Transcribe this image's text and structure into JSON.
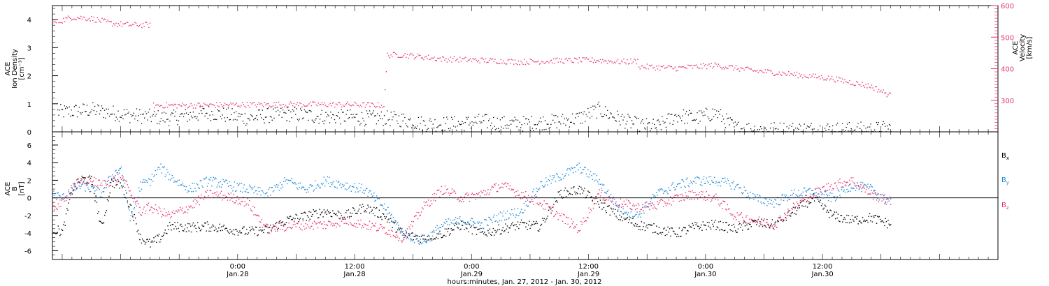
{
  "chart_data": [
    {
      "type": "scatter",
      "panel": "top",
      "ylabel_left": [
        "ACE",
        "Ion Density",
        "[cm⁻³]"
      ],
      "ylabel_right": [
        "ACE",
        "Velocity",
        "[km/s]"
      ],
      "ylim_left": [
        0,
        4.5
      ],
      "ylim_right": [
        200,
        600
      ],
      "yticks_left": [
        "0",
        "1",
        "2",
        "3",
        "4"
      ],
      "yticks_right": [
        "300",
        "400",
        "500",
        "600"
      ],
      "series": [
        {
          "axis": "left",
          "color": "#000000",
          "x_hours": [
            0,
            2,
            4,
            6,
            8,
            10,
            12,
            14,
            16,
            18,
            20,
            22,
            24,
            26,
            28,
            30,
            32,
            34,
            36,
            38,
            40,
            42,
            44,
            46,
            48,
            50,
            52,
            54,
            56,
            58,
            60,
            62,
            64,
            66,
            68,
            70,
            72,
            74,
            76,
            78,
            80,
            82,
            84,
            86
          ],
          "values": [
            0.7,
            0.75,
            0.8,
            0.7,
            0.6,
            0.55,
            0.5,
            0.6,
            0.7,
            0.6,
            0.5,
            0.6,
            0.65,
            0.6,
            0.55,
            0.55,
            0.5,
            0.5,
            0.45,
            0.3,
            0.3,
            0.3,
            0.4,
            0.3,
            0.3,
            0.35,
            0.4,
            0.5,
            0.8,
            0.5,
            0.25,
            0.2,
            0.6,
            0.5,
            0.7,
            0.15,
            0.1,
            0.1,
            0.1,
            0.1,
            0.1,
            0.1,
            0.1,
            0.15
          ]
        },
        {
          "axis": "right",
          "color": "#e8336a",
          "x_hours": [
            0,
            2,
            4,
            6,
            8,
            10,
            10.2,
            14,
            18,
            22,
            26,
            30,
            34,
            34.3,
            36,
            40,
            44,
            48,
            52,
            56,
            58,
            60,
            60.2,
            64,
            68,
            72,
            76,
            80,
            84,
            86
          ],
          "values": [
            545,
            565,
            560,
            545,
            540,
            540,
            285,
            285,
            287,
            288,
            288,
            288,
            285,
            445,
            445,
            432,
            428,
            423,
            427,
            428,
            423,
            425,
            408,
            403,
            412,
            395,
            383,
            370,
            345,
            315
          ]
        }
      ]
    },
    {
      "type": "scatter",
      "panel": "bottom",
      "ylabel_left": [
        "ACE",
        "B",
        "[nT]"
      ],
      "ylim": [
        -7,
        7.5
      ],
      "yticks": [
        "-6",
        "-4",
        "-2",
        "0",
        "2",
        "4",
        "6"
      ],
      "x_start": "Jan. 27, 2012 05:00",
      "x_range_hours": [
        0,
        97
      ],
      "xticks": [
        {
          "hours": 19,
          "top": "0:00",
          "bottom": "Jan.28"
        },
        {
          "hours": 31,
          "top": "12:00",
          "bottom": "Jan.28"
        },
        {
          "hours": 43,
          "top": "0:00",
          "bottom": "Jan.29"
        },
        {
          "hours": 55,
          "top": "12:00",
          "bottom": "Jan.29"
        },
        {
          "hours": 67,
          "top": "0:00",
          "bottom": "Jan.30"
        },
        {
          "hours": 79,
          "top": "12:00",
          "bottom": "Jan.30"
        }
      ],
      "xlabel": "hours:minutes, Jan. 27, 2012 - Jan. 30, 2012",
      "series": [
        {
          "name": "Bx",
          "label_main": "B",
          "label_sub": "x",
          "color": "#000000",
          "x_hours": [
            0,
            1,
            2,
            3,
            4,
            5,
            6,
            7,
            8,
            9,
            10,
            11,
            12,
            14,
            16,
            18,
            20,
            22,
            24,
            26,
            28,
            30,
            32,
            34,
            36,
            38,
            40,
            42,
            44,
            46,
            48,
            50,
            52,
            54,
            56,
            58,
            60,
            62,
            64,
            66,
            68,
            70,
            72,
            74,
            76,
            78,
            80,
            82,
            84,
            86
          ],
          "values": [
            -3.5,
            -3.8,
            1,
            2.2,
            2.0,
            -3.5,
            1.8,
            1.5,
            -1,
            -4.5,
            -5.2,
            -4.5,
            -3.2,
            -3.3,
            -3.2,
            -3.5,
            -3.8,
            -3.6,
            -2.5,
            -2.0,
            -1.5,
            -2.0,
            -1.0,
            -2.0,
            -4.2,
            -4.5,
            -4.0,
            -3.0,
            -4.0,
            -3.5,
            -3.0,
            -3.2,
            0.5,
            1.0,
            -0.5,
            -2.0,
            -3.0,
            -3.5,
            -4.0,
            -3.2,
            -3.0,
            -3.5,
            -2.8,
            -3.0,
            -1.5,
            0,
            -2.0,
            -2.5,
            -2.2,
            -3.0
          ]
        },
        {
          "name": "By",
          "label_main": "B",
          "label_sub": "y",
          "color": "#1e88d8",
          "x_hours": [
            0,
            1,
            2,
            3,
            4,
            5,
            6,
            7,
            8,
            9,
            10,
            11,
            12,
            14,
            16,
            18,
            20,
            22,
            24,
            26,
            28,
            30,
            32,
            34,
            36,
            38,
            40,
            42,
            44,
            46,
            48,
            50,
            52,
            54,
            56,
            58,
            60,
            62,
            64,
            66,
            68,
            70,
            72,
            74,
            76,
            78,
            80,
            82,
            84,
            86
          ],
          "values": [
            0.5,
            0,
            1.0,
            1.5,
            1.0,
            0.5,
            2.5,
            3.5,
            -2.5,
            1.5,
            2.0,
            3.5,
            2.5,
            1.0,
            2.0,
            1.5,
            1.0,
            0.5,
            2.0,
            1.0,
            2.0,
            1.5,
            1.0,
            -1.0,
            -4.0,
            -5.0,
            -3.0,
            -2.5,
            -3.0,
            -2.0,
            -1.5,
            1.5,
            2.5,
            3.5,
            2.0,
            -1.0,
            -2.0,
            0.5,
            1.5,
            2.0,
            2.0,
            1.5,
            0,
            -0.5,
            0.5,
            0.8,
            0,
            1.5,
            1.0,
            -0.5
          ]
        },
        {
          "name": "Bz",
          "label_main": "B",
          "label_sub": "z",
          "color": "#e8336a",
          "x_hours": [
            0,
            1,
            2,
            3,
            4,
            5,
            6,
            7,
            8,
            9,
            10,
            11,
            12,
            14,
            16,
            18,
            20,
            22,
            24,
            26,
            28,
            30,
            32,
            34,
            36,
            38,
            40,
            42,
            44,
            46,
            48,
            50,
            52,
            54,
            56,
            58,
            60,
            62,
            64,
            66,
            68,
            70,
            72,
            74,
            76,
            78,
            80,
            82,
            84,
            86
          ],
          "values": [
            -1.0,
            -0.5,
            1.5,
            1.8,
            2.0,
            1.5,
            2.0,
            2.5,
            0.5,
            -1.5,
            -1.0,
            -1.5,
            -2.0,
            -1.0,
            0.5,
            0.2,
            -0.5,
            -3.5,
            -3.2,
            -3.0,
            -3.0,
            -2.5,
            -3.0,
            -3.5,
            -4.5,
            -1.0,
            1.0,
            0,
            0.5,
            1.5,
            0.5,
            -0.5,
            -2.0,
            -3.5,
            0.5,
            -0.5,
            -1.0,
            -0.8,
            0,
            0.5,
            0,
            -2.0,
            -2.5,
            -3.0,
            -1.0,
            0.5,
            1.5,
            2.0,
            0.5,
            -0.5
          ]
        }
      ]
    }
  ]
}
